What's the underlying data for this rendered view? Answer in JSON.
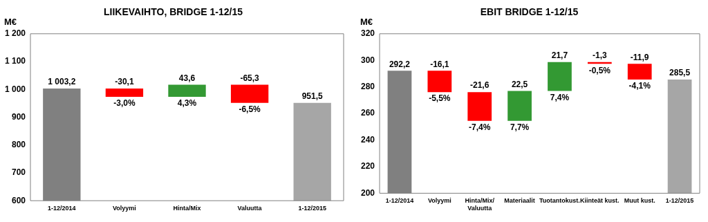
{
  "chart_data": [
    {
      "type": "bar",
      "title": "LIIKEVAIHTO, BRIDGE 1-12/15",
      "ylabel": "M€",
      "categories": [
        "1-12/2014",
        "Volyymi",
        "Hinta/Mix",
        "Valuutta",
        "1-12/2015"
      ],
      "values": [
        1003.2,
        -30.1,
        43.6,
        -65.3,
        951.5
      ],
      "base": [
        null,
        1003.2,
        973.1,
        1016.7,
        null
      ],
      "colors": [
        "#808080",
        "#ff0000",
        "#339933",
        "#ff0000",
        "#a6a6a6"
      ],
      "value_labels": [
        "1 003,2",
        "-30,1",
        "43,6",
        "-65,3",
        "951,5"
      ],
      "annotations": [
        {
          "text": "-3,0%",
          "x": "Volyymi",
          "y": 973.1
        },
        {
          "text": "4,3%",
          "x": "Hinta/Mix",
          "y": 973.1
        },
        {
          "text": "-6,5%",
          "x": "Valuutta",
          "y": 951.4
        }
      ],
      "ylim": [
        600,
        1200
      ],
      "yticks": [
        600,
        700,
        800,
        900,
        {
          "value": 1000,
          "label": "1 000"
        },
        {
          "value": 1100,
          "label": "1 100"
        },
        {
          "value": 1200,
          "label": "1 200"
        }
      ],
      "legend": false,
      "grid": false
    },
    {
      "type": "bar",
      "title": "EBIT BRIDGE 1-12/15",
      "ylabel": "M€",
      "categories": [
        "1-12/2014",
        "Volyymi",
        "Hinta/Mix/Valuutta",
        "Materiaalit",
        "Tuotantokust.",
        "Kiinteät kust.",
        "Muut kust.",
        "1-12/2015"
      ],
      "values": [
        292.2,
        -16.1,
        -21.6,
        22.5,
        21.7,
        -1.3,
        -11.9,
        285.5
      ],
      "base": [
        null,
        292.2,
        276.1,
        254.5,
        277.0,
        298.7,
        297.4,
        null
      ],
      "colors": [
        "#808080",
        "#ff0000",
        "#ff0000",
        "#339933",
        "#339933",
        "#ff0000",
        "#ff0000",
        "#a6a6a6"
      ],
      "value_labels": [
        "292,2",
        "-16,1",
        "-21,6",
        "22,5",
        "21,7",
        "-1,3",
        "-11,9",
        "285,5"
      ],
      "annotations": [
        {
          "text": "-5,5%",
          "x": "Volyymi",
          "y": 276.1
        },
        {
          "text": "-7,4%",
          "x": "Hinta/Mix/Valuutta",
          "y": 254.5
        },
        {
          "text": "7,7%",
          "x": "Materiaalit",
          "y": 254.5
        },
        {
          "text": "7,4%",
          "x": "Tuotantokust.",
          "y": 277.0
        },
        {
          "text": "-0,5%",
          "x": "Kiinteät kust.",
          "y": 297.4
        },
        {
          "text": "-4,1%",
          "x": "Muut kust.",
          "y": 285.5
        }
      ],
      "ylim": [
        200,
        320
      ],
      "yticks": [
        200,
        220,
        240,
        260,
        280,
        300,
        320
      ],
      "legend": false,
      "grid": false
    }
  ]
}
